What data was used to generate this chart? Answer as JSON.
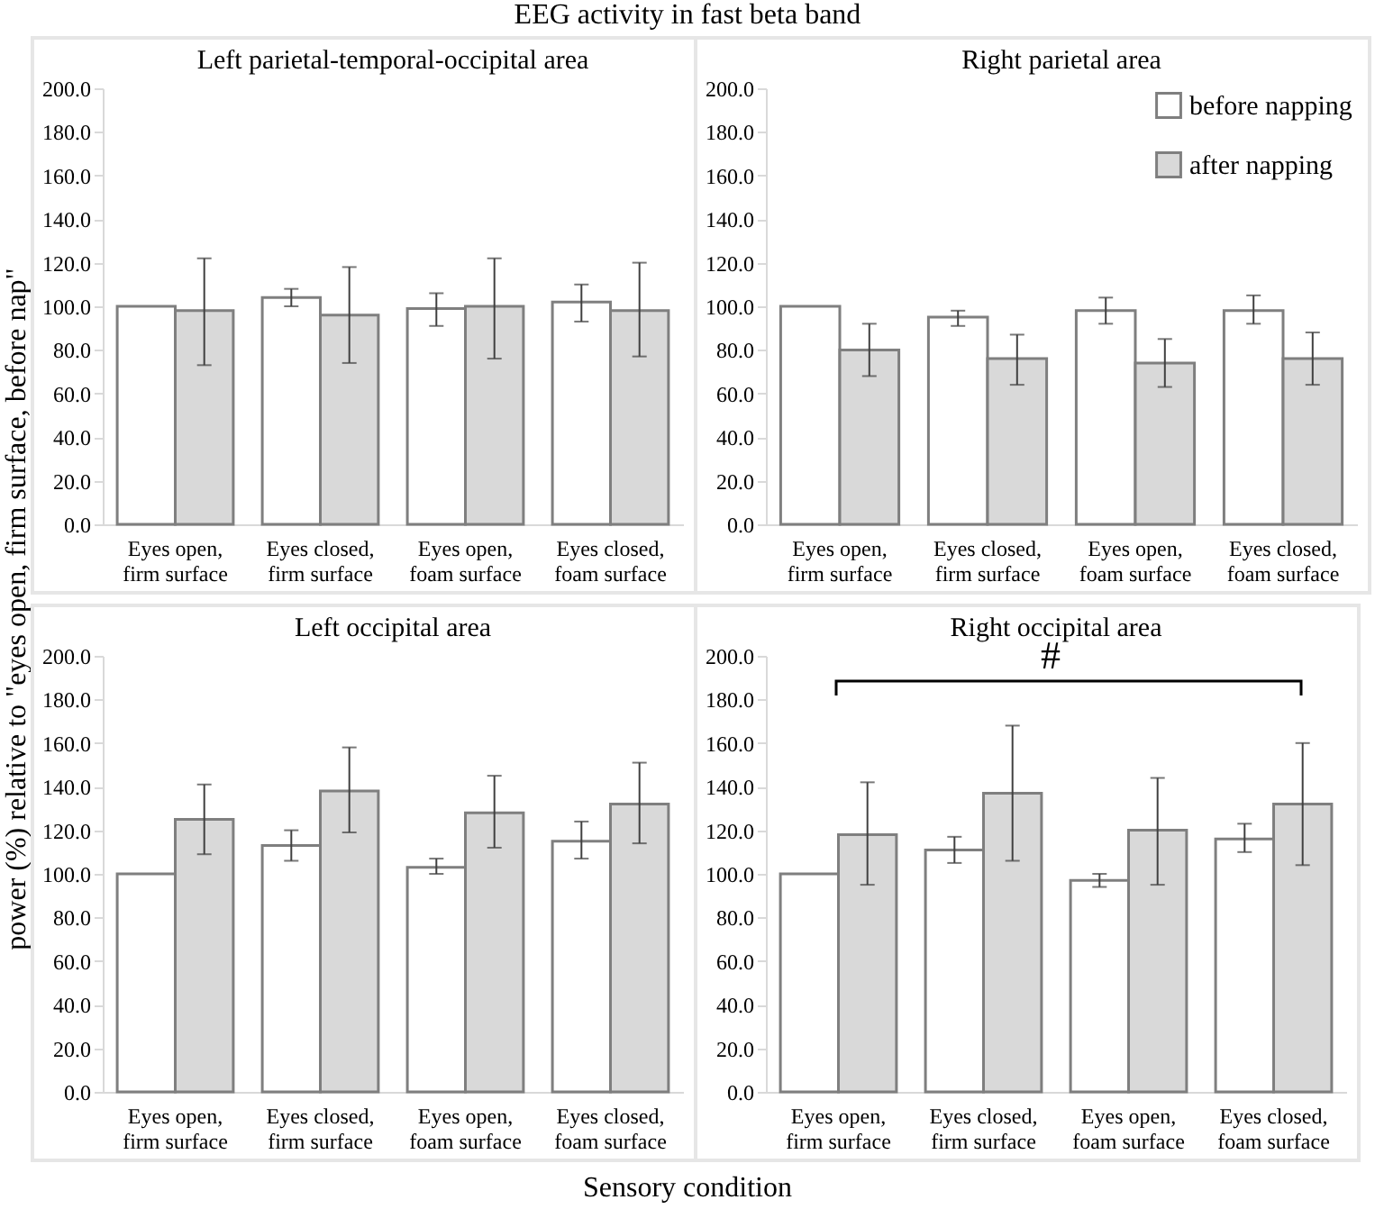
{
  "chart_data": [
    {
      "type": "bar",
      "title": "Left parietal-temporal-occipital area",
      "annotations": [
        "EEG activity in fast beta band"
      ],
      "ylabel": "power (%) relative to \"eyes open, firm surface, before nap\"",
      "categories": [
        "Eyes open, firm surface",
        "Eyes closed, firm surface",
        "Eyes open, foam surface",
        "Eyes closed, foam surface"
      ],
      "series": [
        {
          "color": "#ffffff",
          "values": [
            100,
            104,
            99,
            102
          ],
          "errors": [
            null,
            [
              100,
              108
            ],
            [
              91,
              106
            ],
            [
              93,
              110
            ]
          ]
        },
        {
          "color": "#d9d9d9",
          "values": [
            98,
            96,
            100,
            98
          ],
          "errors": [
            [
              73,
              122
            ],
            [
              74,
              118
            ],
            [
              76,
              122
            ],
            [
              77,
              120
            ]
          ]
        }
      ],
      "ylim": [
        0,
        200
      ],
      "yticks": [
        {
          "value": 0,
          "label": "0.0"
        },
        {
          "value": 20,
          "label": "20.0"
        },
        {
          "value": 40,
          "label": "40.0"
        },
        {
          "value": 60,
          "label": "60.0"
        },
        {
          "value": 80,
          "label": "80.0"
        },
        {
          "value": 100,
          "label": "100.0"
        },
        {
          "value": 120,
          "label": "120.0"
        },
        {
          "value": 140,
          "label": "140.0"
        },
        {
          "value": 160,
          "label": "160.0"
        },
        {
          "value": 180,
          "label": "180.0"
        },
        {
          "value": 200,
          "label": "200.0"
        }
      ],
      "grid": false,
      "legend": false
    },
    {
      "type": "bar",
      "title": "Right parietal area",
      "categories": [
        "Eyes open, firm surface",
        "Eyes closed, firm surface",
        "Eyes open, foam surface",
        "Eyes closed, foam surface"
      ],
      "series": [
        {
          "name": "before napping",
          "color": "#ffffff",
          "values": [
            100,
            95,
            98,
            98
          ],
          "errors": [
            null,
            [
              91,
              98
            ],
            [
              92,
              104
            ],
            [
              92,
              105
            ]
          ]
        },
        {
          "name": "after napping",
          "color": "#d9d9d9",
          "values": [
            80,
            76,
            74,
            76
          ],
          "errors": [
            [
              68,
              92
            ],
            [
              64,
              87
            ],
            [
              63,
              85
            ],
            [
              64,
              88
            ]
          ]
        }
      ],
      "ylim": [
        0,
        200
      ],
      "yticks": [
        {
          "value": 0,
          "label": "0.0"
        },
        {
          "value": 20,
          "label": "20.0"
        },
        {
          "value": 40,
          "label": "40.0"
        },
        {
          "value": 60,
          "label": "60.0"
        },
        {
          "value": 80,
          "label": "80.0"
        },
        {
          "value": 100,
          "label": "100.0"
        },
        {
          "value": 120,
          "label": "120.0"
        },
        {
          "value": 140,
          "label": "140.0"
        },
        {
          "value": 160,
          "label": "160.0"
        },
        {
          "value": 180,
          "label": "180.0"
        },
        {
          "value": 200,
          "label": "200.0"
        }
      ],
      "grid": false,
      "legend": "top right"
    },
    {
      "type": "bar",
      "title": "Left occipital area",
      "xlabel": "Sensory condition",
      "categories": [
        "Eyes open, firm surface",
        "Eyes closed, firm surface",
        "Eyes open, foam surface",
        "Eyes closed, foam surface"
      ],
      "series": [
        {
          "color": "#ffffff",
          "values": [
            100,
            113,
            103,
            115
          ],
          "errors": [
            null,
            [
              106,
              120
            ],
            [
              100,
              107
            ],
            [
              107,
              124
            ]
          ]
        },
        {
          "color": "#d9d9d9",
          "values": [
            125,
            138,
            128,
            132
          ],
          "errors": [
            [
              109,
              141
            ],
            [
              119,
              158
            ],
            [
              112,
              145
            ],
            [
              114,
              151
            ]
          ]
        }
      ],
      "ylim": [
        0,
        200
      ],
      "yticks": [
        {
          "value": 0,
          "label": "0.0"
        },
        {
          "value": 20,
          "label": "20.0"
        },
        {
          "value": 40,
          "label": "40.0"
        },
        {
          "value": 60,
          "label": "60.0"
        },
        {
          "value": 80,
          "label": "80.0"
        },
        {
          "value": 100,
          "label": "100.0"
        },
        {
          "value": 120,
          "label": "120.0"
        },
        {
          "value": 140,
          "label": "140.0"
        },
        {
          "value": 160,
          "label": "160.0"
        },
        {
          "value": 180,
          "label": "180.0"
        },
        {
          "value": 200,
          "label": "200.0"
        }
      ],
      "grid": false,
      "legend": false
    },
    {
      "type": "bar",
      "title": "Right occipital area",
      "annotations": [
        "#"
      ],
      "categories": [
        "Eyes open, firm surface",
        "Eyes closed, firm surface",
        "Eyes open, foam surface",
        "Eyes closed, foam surface"
      ],
      "series": [
        {
          "color": "#ffffff",
          "values": [
            100,
            111,
            97,
            116
          ],
          "errors": [
            null,
            [
              105,
              117
            ],
            [
              94,
              100
            ],
            [
              110,
              123
            ]
          ]
        },
        {
          "color": "#d9d9d9",
          "values": [
            118,
            137,
            120,
            132
          ],
          "errors": [
            [
              95,
              142
            ],
            [
              106,
              168
            ],
            [
              95,
              144
            ],
            [
              104,
              160
            ]
          ]
        }
      ],
      "ylim": [
        0,
        200
      ],
      "yticks": [
        {
          "value": 0,
          "label": "0.0"
        },
        {
          "value": 20,
          "label": "20.0"
        },
        {
          "value": 40,
          "label": "40.0"
        },
        {
          "value": 60,
          "label": "60.0"
        },
        {
          "value": 80,
          "label": "80.0"
        },
        {
          "value": 100,
          "label": "100.0"
        },
        {
          "value": 120,
          "label": "120.0"
        },
        {
          "value": 140,
          "label": "140.0"
        },
        {
          "value": 160,
          "label": "160.0"
        },
        {
          "value": 180,
          "label": "180.0"
        },
        {
          "value": 200,
          "label": "200.0"
        }
      ],
      "grid": false,
      "legend": false
    }
  ]
}
